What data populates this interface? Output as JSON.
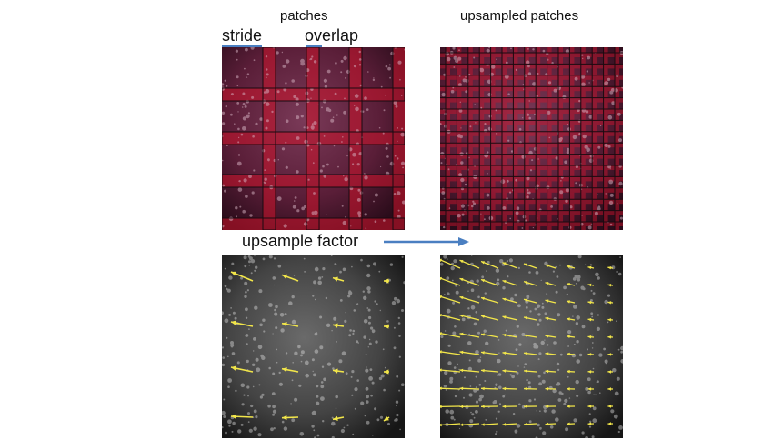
{
  "titles": {
    "left": "patches",
    "right": "upsampled patches"
  },
  "labels": {
    "stride": "stride",
    "overlap": "overlap",
    "upsample": "upsample factor"
  },
  "colors": {
    "underline": "#4a7fc1",
    "arrow_blue": "#4a7fc1",
    "vector": "#f2e64a"
  }
}
